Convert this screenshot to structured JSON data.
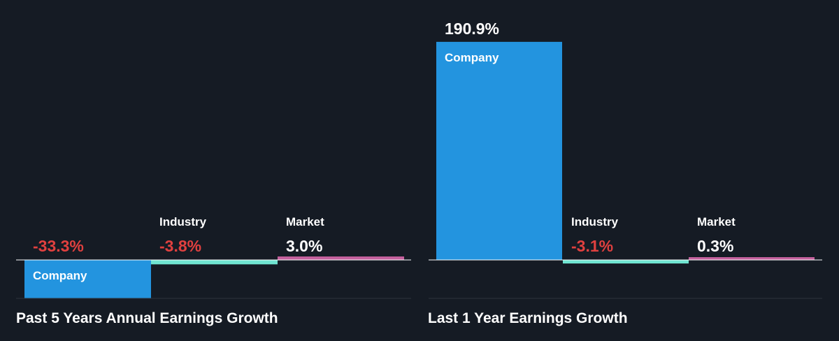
{
  "colors": {
    "background": "#151b24",
    "company": "#2394df",
    "industry": "#6fe4d1",
    "market": "#c4609d",
    "negative_text": "#e0403f",
    "positive_text": "#ffffff",
    "axis": "#ffffff",
    "divider": "#2d333d"
  },
  "chart_data": [
    {
      "type": "bar",
      "title": "Past 5 Years Annual Earnings Growth",
      "categories": [
        "Company",
        "Industry",
        "Market"
      ],
      "values": [
        -33.3,
        -3.8,
        3.0
      ],
      "value_labels": [
        "-33.3%",
        "-3.8%",
        "3.0%"
      ],
      "unit": "%"
    },
    {
      "type": "bar",
      "title": "Last 1 Year Earnings Growth",
      "categories": [
        "Company",
        "Industry",
        "Market"
      ],
      "values": [
        190.9,
        -3.1,
        0.3
      ],
      "value_labels": [
        "190.9%",
        "-3.1%",
        "0.3%"
      ],
      "unit": "%"
    }
  ]
}
